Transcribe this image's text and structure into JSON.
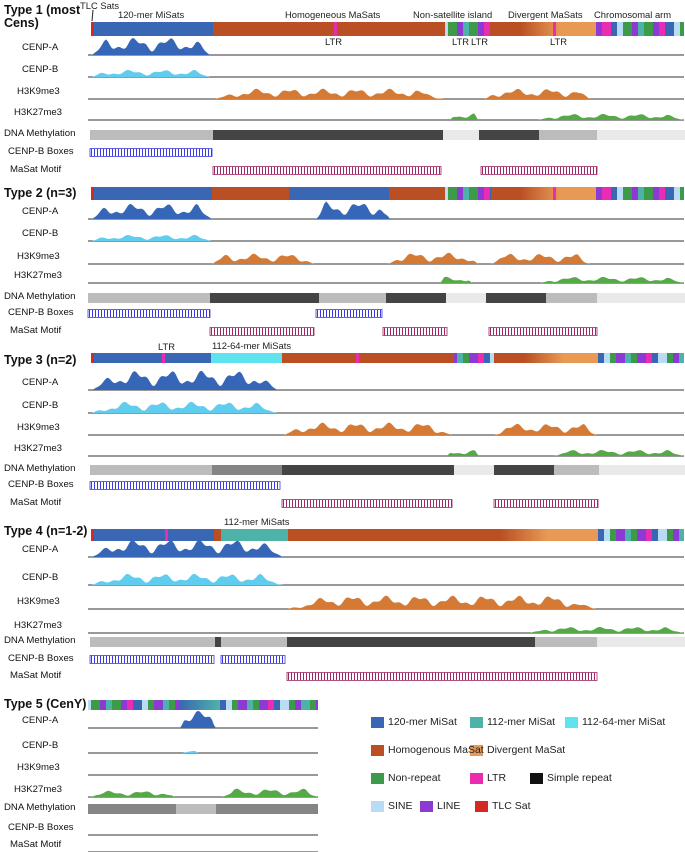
{
  "colors": {
    "mer120": "#3a67b3",
    "mer112": "#4db3a8",
    "mer112_64": "#5fe3ee",
    "homogeneous": "#b94f22",
    "divergent": "#e89a55",
    "nonrepeat": "#3c9a48",
    "ltr": "#e92cb2",
    "simple": "#111111",
    "sine": "#b9dcf5",
    "line": "#8d3ad4",
    "tlc": "#d42a22",
    "cenpa": "#3566b7",
    "cenpb": "#60ccee",
    "h3k9": "#d47a35",
    "h3k27": "#56a947",
    "meth_light": "#bcbcbc",
    "meth_mid": "#858585",
    "meth_dark": "#444444",
    "meth_faint": "#e9e9e9",
    "cenpb_box": "#3a3ae2",
    "masat_motif": "#a02565"
  },
  "track_labels": [
    "CENP-A",
    "CENP-B",
    "H3K9me3",
    "H3K27me3",
    "DNA Methylation",
    "CENP-B Boxes",
    "MaSat Motif"
  ],
  "types": [
    {
      "title": "Type 1 (most Cens)",
      "annotations": [
        "TLC Sats",
        "120-mer MiSats",
        "Homogeneous MaSats",
        "Non-satellite island",
        "Divergent MaSats",
        "Chromosomal arm",
        "LTR",
        "LTR",
        "LTR",
        "LTR"
      ]
    },
    {
      "title": "Type 2 (n=3)",
      "annotations": []
    },
    {
      "title": "Type 3 (n=2)",
      "annotations": [
        "LTR",
        "112-64-mer MiSats"
      ]
    },
    {
      "title": "Type 4 (n=1-2)",
      "annotations": [
        "112-mer MiSats"
      ]
    },
    {
      "title": "Type 5 (CenY)",
      "annotations": []
    }
  ],
  "legend": [
    {
      "label": "120-mer MiSat",
      "color_key": "mer120"
    },
    {
      "label": "112-mer MiSat",
      "color_key": "mer112"
    },
    {
      "label": "112-64-mer MiSat",
      "color_key": "mer112_64"
    },
    {
      "label": "Homogenous MaSat",
      "color_key": "homogeneous"
    },
    {
      "label": "Divergent MaSat",
      "color_key": "divergent"
    },
    {
      "label": "Non-repeat",
      "color_key": "nonrepeat"
    },
    {
      "label": "LTR",
      "color_key": "ltr"
    },
    {
      "label": "Simple repeat",
      "color_key": "simple"
    },
    {
      "label": "SINE",
      "color_key": "sine"
    },
    {
      "label": "LINE",
      "color_key": "line"
    },
    {
      "label": "TLC Sat",
      "color_key": "tlc"
    }
  ]
}
